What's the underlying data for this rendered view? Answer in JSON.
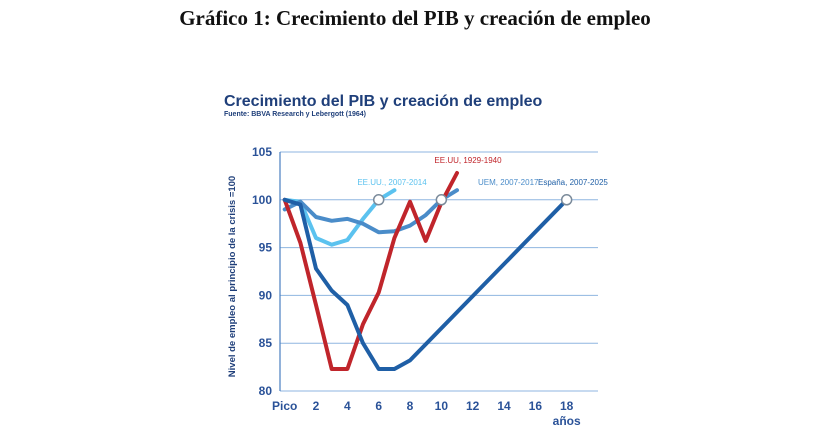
{
  "document": {
    "title": "Gráfico 1: Crecimiento del PIB y creación de empleo"
  },
  "colors": {
    "title": "#1f3f7a",
    "tick_text": "#2a5298",
    "grid": "#8fb6e0",
    "axis": "#4a7fc0"
  },
  "chart_data": {
    "type": "line",
    "title": "Crecimiento del PIB y creación de empleo",
    "subtitle": "Fuente: BBVA Research y Lebergott (1964)",
    "ylabel": "Nivel de empleo al principio de la crisis =100",
    "xlabel": "años",
    "ylim": [
      80,
      105
    ],
    "xlim": [
      -0.3,
      20
    ],
    "yticks": [
      80,
      85,
      90,
      95,
      100,
      105
    ],
    "yticks_labels": [
      "80",
      "85",
      "90",
      "95",
      "100",
      "105"
    ],
    "xticks": [
      0,
      2,
      4,
      6,
      8,
      10,
      12,
      14,
      16,
      18
    ],
    "xticks_labels": [
      "Pico",
      "2",
      "4",
      "6",
      "8",
      "10",
      "12",
      "14",
      "16",
      "18"
    ],
    "grid": true,
    "series": [
      {
        "name": "EE.UU., 2007-2014",
        "color": "#5bc2ef",
        "x": [
          0,
          1,
          2,
          3,
          4,
          5,
          6,
          7
        ],
        "y": [
          100,
          99.8,
          96,
          95.3,
          95.8,
          98,
          100,
          101
        ],
        "marker_x": 6,
        "marker_y": 100
      },
      {
        "name": "UEM, 2007-2017",
        "color": "#4a8cc9",
        "x": [
          0,
          1,
          2,
          3,
          4,
          5,
          6,
          7,
          8,
          9,
          10,
          11
        ],
        "y": [
          99,
          99.8,
          98.2,
          97.8,
          98,
          97.5,
          96.6,
          96.7,
          97.3,
          98.4,
          100,
          101
        ],
        "marker_x": 10,
        "marker_y": 100
      },
      {
        "name": "EE.UU, 1929-1940",
        "color": "#c0252b",
        "x": [
          0,
          1,
          2,
          3,
          4,
          5,
          6,
          7,
          8,
          9,
          10,
          11
        ],
        "y": [
          100,
          95.5,
          89,
          82.3,
          82.3,
          87,
          90.3,
          96,
          99.8,
          95.7,
          99.7,
          102.8
        ]
      },
      {
        "name": "España, 2007-2025",
        "color": "#1f5fa6",
        "x": [
          0,
          1,
          2,
          3,
          4,
          5,
          6,
          7,
          8,
          18
        ],
        "y": [
          100,
          99.5,
          92.8,
          90.5,
          89,
          85,
          82.3,
          82.3,
          83.2,
          100
        ],
        "marker_x": 18,
        "marker_y": 100
      }
    ]
  }
}
